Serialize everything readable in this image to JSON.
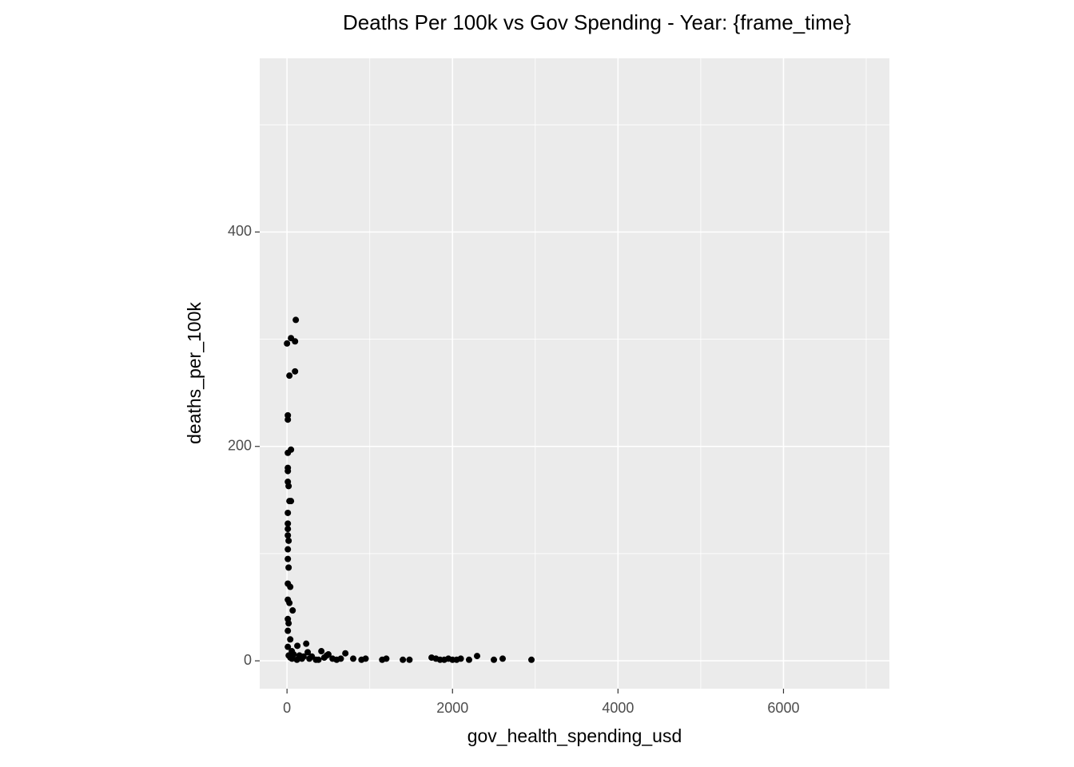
{
  "chart_data": {
    "type": "scatter",
    "title": "Deaths Per 100k vs Gov Spending - Year: {frame_time}",
    "x_label": "gov_health_spending_usd",
    "y_label": "deaths_per_100k",
    "xlim": [
      -330,
      7280
    ],
    "ylim": [
      -26,
      562
    ],
    "xticks": [
      0,
      2000,
      4000,
      6000
    ],
    "yticks": [
      0,
      200,
      400
    ],
    "x_minor_ticks": [
      1000,
      3000,
      5000,
      7000
    ],
    "y_minor_ticks": [
      100,
      300,
      500
    ],
    "grid": true,
    "color": "#000000",
    "series": [
      {
        "name": "deaths_per_100k",
        "x": [
          106,
          48,
          97,
          0,
          97,
          29,
          10,
          10,
          48,
          10,
          10,
          10,
          10,
          19,
          29,
          48,
          10,
          10,
          10,
          10,
          19,
          10,
          10,
          19,
          10,
          39,
          10,
          29,
          68,
          10,
          19,
          10,
          39,
          10,
          58,
          125,
          232,
          415,
          705,
          1747,
          2297,
          2606,
          2954,
          150,
          180,
          250,
          300,
          350,
          450,
          500,
          550,
          600,
          800,
          900,
          950,
          1150,
          1200,
          1400,
          1480,
          1800,
          1850,
          1900,
          1950,
          2000,
          2050,
          2100,
          2200,
          2500,
          20,
          40,
          60,
          80,
          120,
          200,
          270,
          380,
          480,
          650
        ],
        "y": [
          318,
          301,
          298,
          296,
          270,
          266,
          229,
          225,
          197,
          194,
          180,
          177,
          167,
          163,
          149,
          149,
          138,
          128,
          123,
          117,
          112,
          104,
          95,
          87,
          72,
          69,
          57,
          54,
          47,
          39,
          35,
          28,
          20,
          13,
          9,
          14,
          16,
          9,
          7,
          3,
          4.5,
          2,
          1,
          5,
          2,
          8,
          4,
          1,
          3,
          6,
          2,
          1,
          2,
          1,
          2,
          1,
          2,
          1,
          1,
          2,
          1,
          1,
          2,
          1,
          1,
          2,
          1,
          1,
          5,
          3,
          2,
          6,
          1,
          4,
          2,
          1,
          5,
          2
        ]
      }
    ]
  }
}
